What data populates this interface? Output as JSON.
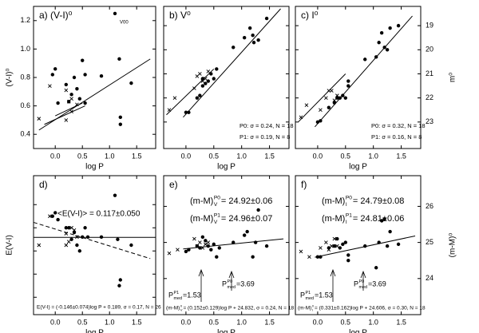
{
  "chart_data": [
    {
      "type": "scatter",
      "title": "a) (V-I)⁰",
      "xlabel": "log P",
      "ylabel": "(V-I)⁰",
      "ytick_side": "left",
      "ytick_labels": true,
      "xlim": [
        -0.4,
        1.85
      ],
      "xticks": [
        {
          "value": 0,
          "label": "0.0"
        },
        0.5,
        {
          "value": 1,
          "label": "1.0"
        },
        1.5
      ],
      "ylim": [
        0.3,
        1.3
      ],
      "yticks": [
        0.4,
        0.6,
        0.8,
        {
          "value": 1,
          "label": "1.0"
        },
        1.2
      ],
      "series": [
        {
          "marker": "circle",
          "x": [
            -0.05,
            0.0,
            0.2,
            0.3,
            0.35,
            0.4,
            0.45,
            0.5,
            0.55,
            0.55,
            0.85,
            1.1,
            1.18,
            1.2,
            1.2,
            1.4,
            0.25,
            0.05
          ],
          "values": [
            0.82,
            0.86,
            0.75,
            0.68,
            0.8,
            0.72,
            0.65,
            0.92,
            0.82,
            0.62,
            0.81,
            1.25,
            0.93,
            0.52,
            0.47,
            0.76,
            0.63,
            0.62
          ]
        },
        {
          "marker": "cross",
          "x": [
            -0.3,
            -0.1,
            0.2,
            0.25,
            0.3,
            0.4,
            0.2,
            0.3
          ],
          "values": [
            0.51,
            0.74,
            0.71,
            0.63,
            0.65,
            0.61,
            0.5,
            0.56
          ]
        }
      ],
      "fits": [
        {
          "style": "solid",
          "x": [
            -0.3,
            1.75
          ],
          "values": [
            0.43,
            0.93
          ]
        },
        {
          "style": "solid",
          "x": [
            -0.2,
            0.55
          ],
          "values": [
            0.47,
            0.6
          ]
        },
        {
          "style": "solid",
          "x": [
            0.0,
            0.5
          ],
          "values": [
            0.53,
            0.62
          ]
        }
      ],
      "annotations": [
        "V00"
      ]
    },
    {
      "type": "scatter",
      "title": "b) V⁰",
      "xlabel": "log P",
      "ytick_side": "right",
      "ytick_labels": false,
      "xlim": [
        -0.4,
        1.85
      ],
      "xticks": [
        {
          "value": 0,
          "label": "0.0"
        },
        0.5,
        {
          "value": 1,
          "label": "1.0"
        },
        1.5
      ],
      "ylim": [
        24.1,
        18.2
      ],
      "yticks": [
        19,
        20,
        21,
        22,
        23
      ],
      "series": [
        {
          "marker": "circle",
          "x": [
            0.0,
            0.05,
            0.2,
            0.25,
            0.3,
            0.3,
            0.35,
            0.4,
            0.45,
            0.5,
            0.55,
            0.85,
            1.05,
            1.15,
            1.2,
            1.22,
            1.3,
            1.45
          ],
          "values": [
            22.6,
            22.6,
            22.0,
            21.9,
            21.5,
            21.2,
            21.4,
            21.3,
            21.0,
            21.2,
            20.8,
            19.9,
            19.5,
            19.1,
            19.4,
            19.7,
            19.6,
            18.7
          ]
        },
        {
          "marker": "cross",
          "x": [
            -0.3,
            -0.2,
            0.2,
            0.25,
            0.3,
            0.35,
            0.15,
            0.4
          ],
          "values": [
            22.5,
            22.0,
            21.1,
            21.0,
            21.3,
            21.2,
            21.6,
            20.9
          ]
        }
      ],
      "fits": [
        {
          "style": "solid",
          "x": [
            -0.05,
            1.7
          ],
          "values": [
            22.8,
            18.3
          ]
        },
        {
          "style": "solid",
          "x": [
            -0.35,
            0.5
          ],
          "values": [
            22.7,
            20.8
          ]
        }
      ],
      "annotations": [
        "P0: σ = 0.24, N = 18",
        "P1: σ = 0.19, N = 8"
      ]
    },
    {
      "type": "scatter",
      "title": "c) I⁰",
      "xlabel": "log P",
      "ylabel": "m⁰",
      "ytick_side": "right",
      "ytick_labels": true,
      "xlim": [
        -0.4,
        1.85
      ],
      "xticks": [
        {
          "value": 0,
          "label": "0.0"
        },
        0.5,
        {
          "value": 1,
          "label": "1.0"
        },
        1.5
      ],
      "ylim": [
        24.1,
        18.2
      ],
      "yticks": [
        19,
        20,
        21,
        22,
        23
      ],
      "series": [
        {
          "marker": "circle",
          "x": [
            0.0,
            0.05,
            0.2,
            0.3,
            0.35,
            0.4,
            0.45,
            0.5,
            0.55,
            0.55,
            0.85,
            1.05,
            1.1,
            1.15,
            1.2,
            1.25,
            1.3,
            1.45
          ],
          "values": [
            23.0,
            22.95,
            22.4,
            22.2,
            22.0,
            22.0,
            21.9,
            22.0,
            21.5,
            21.3,
            20.4,
            20.3,
            19.7,
            19.3,
            19.9,
            20.0,
            19.1,
            19.0
          ]
        },
        {
          "marker": "cross",
          "x": [
            -0.3,
            -0.2,
            0.15,
            0.2,
            0.25,
            0.3,
            0.35,
            0.05
          ],
          "values": [
            22.8,
            22.3,
            22.0,
            21.7,
            21.7,
            22.1,
            21.9,
            22.5
          ]
        }
      ],
      "fits": [
        {
          "style": "solid",
          "x": [
            -0.05,
            1.7
          ],
          "values": [
            23.2,
            18.6
          ]
        },
        {
          "style": "solid",
          "x": [
            -0.35,
            0.5
          ],
          "values": [
            23.0,
            21.0
          ]
        }
      ],
      "annotations": [
        "P0: σ = 0.32, N = 18",
        "P1: σ = 0.16, N = 8"
      ]
    },
    {
      "type": "scatter",
      "title": "d)",
      "xlabel": "log P",
      "ylabel": "E(V-I)",
      "ytick_side": "left",
      "ytick_labels": false,
      "xlim": [
        -0.4,
        1.85
      ],
      "xticks": [
        {
          "value": 0,
          "label": "0.0"
        },
        0.5,
        {
          "value": 1,
          "label": "1.0"
        },
        1.5
      ],
      "ylim": [
        -0.55,
        0.65
      ],
      "yticks": [
        -0.4,
        -0.2,
        0,
        0.2,
        0.4
      ],
      "series": [
        {
          "marker": "circle",
          "x": [
            -0.05,
            0.0,
            0.2,
            0.3,
            0.35,
            0.4,
            0.45,
            0.5,
            0.55,
            0.85,
            1.1,
            1.15,
            1.18,
            1.2,
            1.4,
            0.25,
            0.6,
            0.05
          ],
          "values": [
            0.3,
            0.33,
            0.2,
            0.1,
            0.16,
            0.05,
            0.0,
            0.12,
            0.2,
            0.12,
            0.48,
            0.1,
            -0.3,
            -0.25,
            0.05,
            0.2,
            0.12,
            0.27
          ]
        },
        {
          "marker": "cross",
          "x": [
            -0.3,
            -0.1,
            0.2,
            0.25,
            0.3,
            0.35,
            0.2,
            0.4
          ],
          "values": [
            0.05,
            0.3,
            0.15,
            0.08,
            0.2,
            0.18,
            0.05,
            0.12
          ]
        }
      ],
      "fits": [
        {
          "style": "solid",
          "x": [
            -0.4,
            1.85
          ],
          "values": [
            0.117,
            0.117
          ]
        },
        {
          "style": "dashed",
          "x": [
            -0.4,
            1.75
          ],
          "values": [
            0.247,
            -0.066
          ]
        }
      ],
      "annotations": [
        "<E(V-I)> = 0.117±0.050",
        "E(V-I) = (-0.146±0.074)log P + 0.189, σ = 0.17, N = 26"
      ]
    },
    {
      "type": "scatter",
      "title": "e)",
      "xlabel": "log P",
      "ytick_side": "right",
      "ytick_labels": false,
      "xlim": [
        -0.4,
        1.85
      ],
      "xticks": [
        {
          "value": 0,
          "label": "0.0"
        },
        0.5,
        {
          "value": 1,
          "label": "1.0"
        },
        1.5
      ],
      "ylim": [
        23.0,
        26.85
      ],
      "yticks": [
        24,
        25,
        26
      ],
      "series": [
        {
          "marker": "circle",
          "x": [
            0.0,
            0.05,
            0.2,
            0.25,
            0.3,
            0.35,
            0.4,
            0.45,
            0.5,
            0.55,
            0.85,
            1.05,
            1.1,
            1.2,
            1.25,
            1.3,
            1.45,
            0.6
          ],
          "values": [
            24.75,
            24.8,
            24.9,
            24.85,
            25.15,
            25.05,
            24.9,
            24.8,
            24.95,
            24.6,
            25.0,
            25.2,
            25.3,
            24.6,
            25.0,
            25.9,
            24.9,
            24.85
          ]
        },
        {
          "marker": "cross",
          "x": [
            -0.3,
            -0.15,
            0.15,
            0.2,
            0.25,
            0.3,
            0.35,
            0.4
          ],
          "values": [
            24.7,
            24.8,
            25.1,
            24.9,
            25.0,
            24.85,
            24.95,
            25.0
          ]
        }
      ],
      "fits": [
        {
          "style": "solid",
          "x": [
            -0.05,
            1.75
          ],
          "values": [
            24.82,
            25.1
          ]
        }
      ],
      "annotations": [
        {
          "base": "(m-M)",
          "sup": "P0",
          "sub": "V",
          "text": "= 24.92±0.06"
        },
        {
          "base": "(m-M)",
          "sup": "P1",
          "sub": "V",
          "text": "= 24.96±0.07"
        },
        {
          "base": "P",
          "sup": "P1",
          "sub": "med",
          "text": "=1.53"
        },
        {
          "base": "P",
          "sup": "P0",
          "sub": "med",
          "text": "=3.69"
        },
        {
          "base": "(m-M)",
          "sup": "0",
          "sub": "V",
          "text": " = (0.152±0.129)log P + 24.832, σ = 0.24, N = 18"
        }
      ]
    },
    {
      "type": "scatter",
      "title": "f)",
      "xlabel": "log P",
      "ylabel": "(m-M)⁰",
      "ytick_side": "right",
      "ytick_labels": true,
      "xlim": [
        -0.4,
        1.85
      ],
      "xticks": [
        {
          "value": 0,
          "label": "0.0"
        },
        0.5,
        {
          "value": 1,
          "label": "1.0"
        },
        1.5
      ],
      "ylim": [
        23.0,
        26.85
      ],
      "yticks": [
        24,
        25,
        26
      ],
      "series": [
        {
          "marker": "circle",
          "x": [
            0.0,
            0.05,
            0.2,
            0.3,
            0.35,
            0.4,
            0.45,
            0.5,
            0.55,
            0.55,
            0.85,
            1.05,
            1.1,
            1.15,
            1.2,
            1.25,
            1.3,
            1.45
          ],
          "values": [
            24.6,
            24.6,
            24.85,
            24.9,
            25.1,
            24.85,
            24.95,
            25.0,
            24.65,
            24.5,
            24.9,
            24.3,
            25.0,
            25.6,
            25.65,
            24.9,
            25.3,
            24.95
          ]
        },
        {
          "marker": "cross",
          "x": [
            -0.3,
            -0.15,
            0.15,
            0.2,
            0.25,
            0.3,
            0.35,
            0.05
          ],
          "values": [
            24.75,
            24.6,
            25.0,
            24.8,
            24.9,
            25.1,
            24.9,
            24.85
          ]
        }
      ],
      "fits": [
        {
          "style": "solid",
          "x": [
            -0.05,
            1.75
          ],
          "values": [
            24.59,
            25.18
          ]
        }
      ],
      "annotations": [
        {
          "base": "(m-M)",
          "sup": "P0",
          "sub": "I",
          "text": "= 24.79±0.08"
        },
        {
          "base": "(m-M)",
          "sup": "P1",
          "sub": "I",
          "text": "= 24.81±0.06"
        },
        {
          "base": "P",
          "sup": "P1",
          "sub": "med",
          "text": "=1.53"
        },
        {
          "base": "P",
          "sup": "P0",
          "sub": "med",
          "text": "=3.69"
        },
        {
          "base": "(m-M)",
          "sup": "0",
          "sub": "I",
          "text": " = (0.331±0.162)log P + 24.606, σ = 0.30, N = 18"
        }
      ]
    }
  ]
}
